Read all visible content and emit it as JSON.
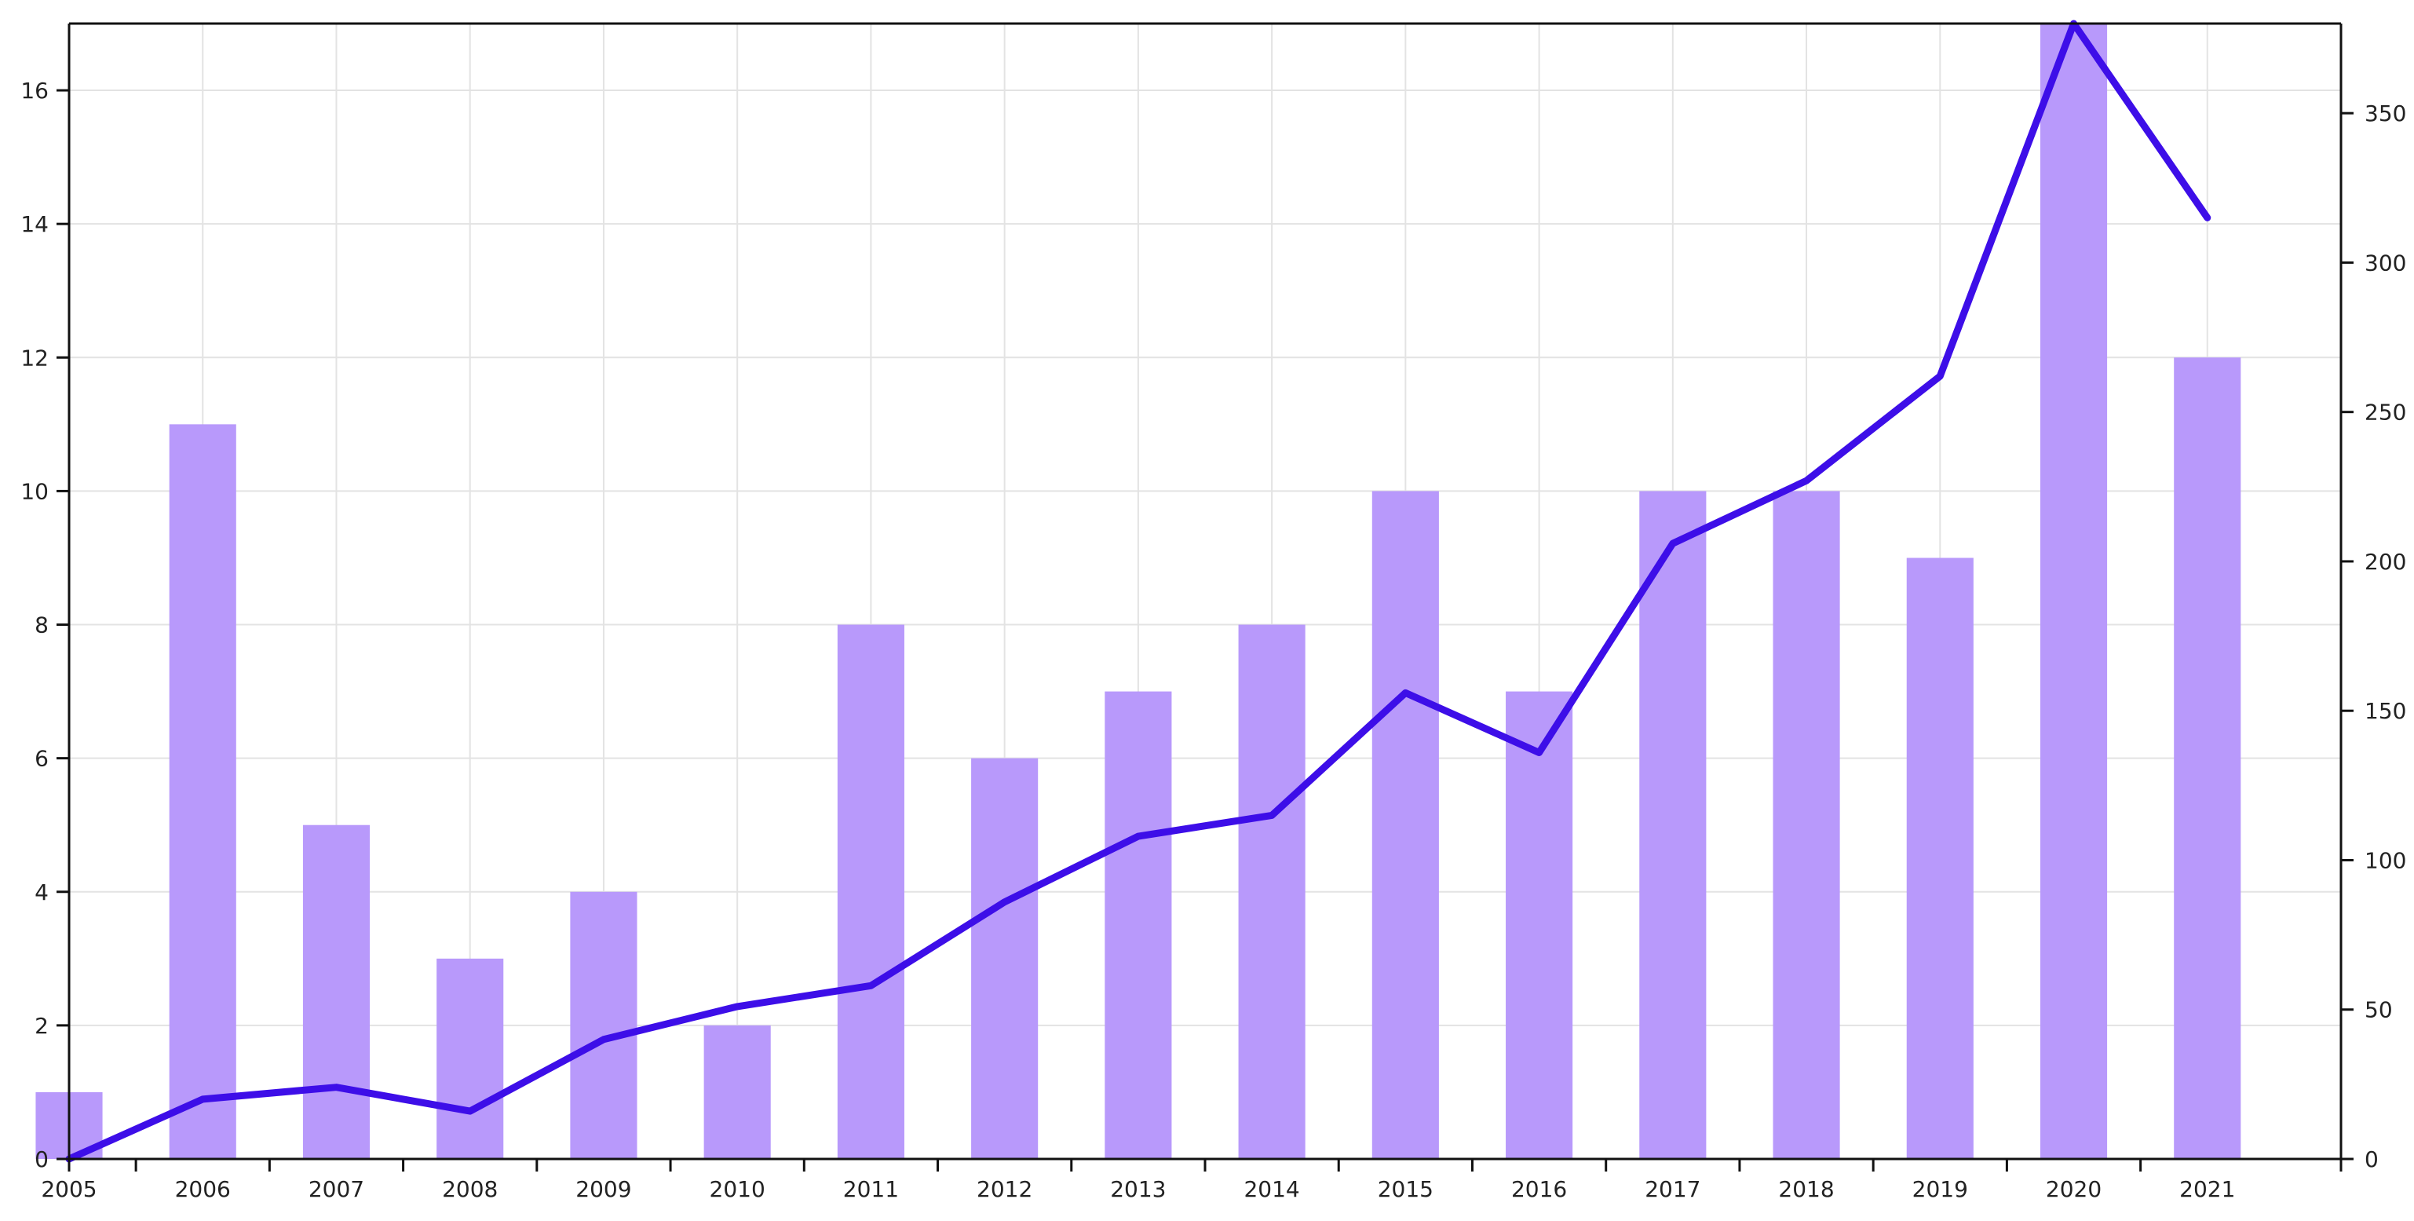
{
  "chart_data": {
    "type": "bar",
    "categories": [
      "2005",
      "2006",
      "2007",
      "2008",
      "2009",
      "2010",
      "2011",
      "2012",
      "2013",
      "2014",
      "2015",
      "2016",
      "2017",
      "2018",
      "2019",
      "2020",
      "2021"
    ],
    "series": [
      {
        "type": "bar",
        "axis": "left",
        "color": "#b899fb",
        "values": [
          1,
          11,
          5,
          3,
          4,
          2,
          8,
          6,
          7,
          8,
          10,
          7,
          10,
          10,
          9,
          17,
          12
        ]
      },
      {
        "type": "line",
        "axis": "right",
        "color": "#3d0ee8",
        "values": [
          0,
          20,
          24,
          16,
          40,
          51,
          58,
          86,
          108,
          115,
          156,
          136,
          206,
          227,
          262,
          380,
          315
        ]
      }
    ],
    "y_left": {
      "min": 0,
      "max": 17,
      "ticks": [
        0,
        2,
        4,
        6,
        8,
        10,
        12,
        14,
        16
      ]
    },
    "y_right": {
      "min": 0,
      "max": 380,
      "ticks": [
        0,
        50,
        100,
        150,
        200,
        250,
        300,
        350
      ]
    },
    "grid": true,
    "legend": "none"
  }
}
